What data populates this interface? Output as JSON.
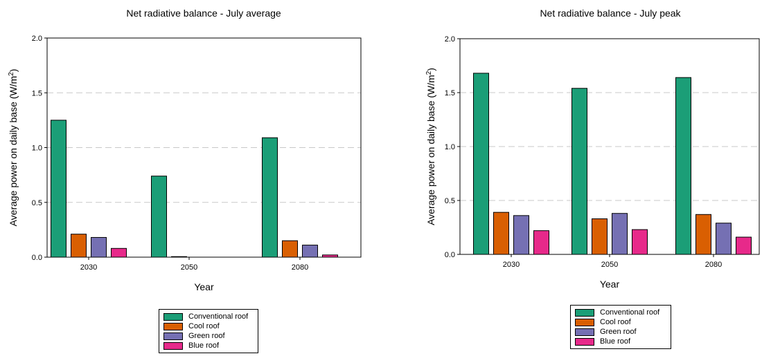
{
  "chart_data": [
    {
      "type": "bar",
      "title": "Net radiative balance - July average",
      "xlabel": "Year",
      "ylabel": "Average power on daily base (W/m",
      "ylabel_sup": "2",
      "ylabel_close": ")",
      "categories": [
        "2030",
        "2050",
        "2080"
      ],
      "ylim": [
        0,
        2.0
      ],
      "yticks": [
        "0.0",
        "0.5",
        "1.0",
        "1.5",
        "2.0"
      ],
      "grid": "horizontal dashed",
      "legend_position": "bottom",
      "series": [
        {
          "name": "Conventional roof",
          "values": [
            1.25,
            0.74,
            1.09
          ]
        },
        {
          "name": "Cool roof",
          "values": [
            0.21,
            0.005,
            0.15
          ]
        },
        {
          "name": "Green roof",
          "values": [
            0.18,
            0.0,
            0.11
          ]
        },
        {
          "name": "Blue roof",
          "values": [
            0.08,
            0.0,
            0.02
          ]
        }
      ]
    },
    {
      "type": "bar",
      "title": "Net radiative balance - July peak",
      "xlabel": "Year",
      "ylabel": "Average power on daily base (W/m",
      "ylabel_sup": "2",
      "ylabel_close": ")",
      "categories": [
        "2030",
        "2050",
        "2080"
      ],
      "ylim": [
        0,
        2.0
      ],
      "yticks": [
        "0.0",
        "0.5",
        "1.0",
        "1.5",
        "2.0"
      ],
      "grid": "horizontal dashed",
      "legend_position": "bottom",
      "series": [
        {
          "name": "Conventional roof",
          "values": [
            1.68,
            1.54,
            1.64
          ]
        },
        {
          "name": "Cool roof",
          "values": [
            0.39,
            0.33,
            0.37
          ]
        },
        {
          "name": "Green roof",
          "values": [
            0.36,
            0.38,
            0.29
          ]
        },
        {
          "name": "Blue roof",
          "values": [
            0.22,
            0.23,
            0.16
          ]
        }
      ]
    }
  ],
  "colors": {
    "Conventional roof": "#1b9e77",
    "Cool roof": "#d95f02",
    "Green roof": "#7570b3",
    "Blue roof": "#e7298a"
  }
}
